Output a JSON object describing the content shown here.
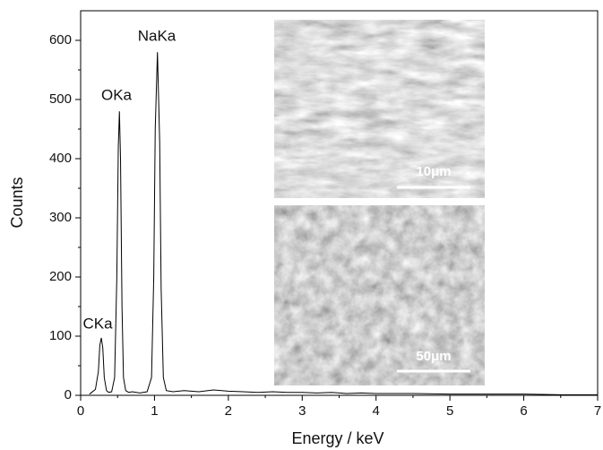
{
  "chart_data": {
    "type": "line",
    "x_label": "Energy / keV",
    "y_label": "Counts",
    "x": [
      0.12,
      0.15,
      0.2,
      0.24,
      0.26,
      0.28,
      0.3,
      0.32,
      0.35,
      0.38,
      0.42,
      0.46,
      0.49,
      0.51,
      0.525,
      0.54,
      0.56,
      0.58,
      0.61,
      0.65,
      0.7,
      0.8,
      0.9,
      0.96,
      0.99,
      1.01,
      1.04,
      1.07,
      1.09,
      1.12,
      1.16,
      1.25,
      1.4,
      1.6,
      1.8,
      2.0,
      2.2,
      2.4,
      2.6,
      2.8,
      3.0,
      3.2,
      3.4,
      3.6,
      3.8,
      4.0,
      4.5,
      5.0,
      5.5,
      6.0,
      6.5,
      7.0
    ],
    "values": [
      2,
      5,
      10,
      40,
      85,
      97,
      80,
      30,
      8,
      5,
      6,
      30,
      200,
      420,
      480,
      400,
      150,
      30,
      8,
      5,
      6,
      4,
      6,
      30,
      200,
      450,
      580,
      430,
      180,
      30,
      8,
      6,
      8,
      6,
      9,
      7,
      6,
      5,
      6,
      5,
      5,
      4,
      5,
      3,
      4,
      3,
      3,
      2,
      2,
      2,
      1,
      1
    ],
    "color": "#000000",
    "xlim": [
      0,
      7
    ],
    "xticks": [
      0,
      1,
      2,
      3,
      4,
      5,
      6,
      7
    ],
    "ylim": [
      0,
      650
    ],
    "yticks": [
      0,
      100,
      200,
      300,
      400,
      500,
      600
    ],
    "annotations": [
      "CKa",
      "OKa",
      "NaKa"
    ],
    "inset_labels": [
      "10μm",
      "50μm"
    ]
  }
}
